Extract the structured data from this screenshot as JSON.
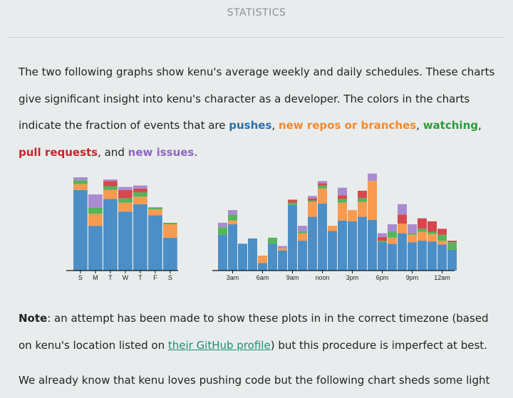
{
  "section_title": "STATISTICS",
  "intro": {
    "text_1": "The two following graphs show kenu's average weekly and daily schedules. These charts give significant insight into kenu's character as a developer. The colors in the charts indicate the fraction of events that are ",
    "pushes": "pushes",
    "sep_1": ", ",
    "repos": "new repos or branches",
    "sep_2": ", ",
    "watching": "watching",
    "sep_3": ", ",
    "pulls": "pull requests",
    "sep_4": ", and ",
    "issues": "new issues",
    "end": "."
  },
  "note": {
    "label": "Note",
    "text_1": ": an attempt has been made to show these plots in in the correct timezone (based on kenu's location listed on ",
    "link": "their GitHub profile",
    "text_2": ") but this procedure is imperfect at best."
  },
  "closing": {
    "text": "We already know that kenu loves pushing code but the following chart sheds some light"
  },
  "colors": {
    "push": "#4b8fc6",
    "create": "#fa9a4f",
    "watch": "#54b55a",
    "pull": "#d8474e",
    "issue": "#a98bcf",
    "axis": "#111111"
  },
  "chart_data": [
    {
      "type": "bar",
      "stacked": true,
      "categories": [
        "S",
        "M",
        "T",
        "W",
        "T",
        "F",
        "S"
      ],
      "ylim": [
        0,
        125
      ],
      "series": [
        {
          "key": "push",
          "values": [
            108,
            60,
            96,
            79,
            89,
            74,
            44
          ]
        },
        {
          "key": "create",
          "values": [
            8,
            16,
            12,
            12,
            10,
            8,
            18
          ]
        },
        {
          "key": "watch",
          "values": [
            5,
            8,
            5,
            6,
            6,
            2,
            2
          ]
        },
        {
          "key": "pull",
          "values": [
            0,
            0,
            7,
            11,
            5,
            0,
            0
          ]
        },
        {
          "key": "issue",
          "values": [
            4,
            18,
            2,
            4,
            4,
            1,
            0
          ]
        }
      ]
    },
    {
      "type": "bar",
      "stacked": true,
      "categories": [
        "0",
        "1",
        "2",
        "3",
        "4",
        "5",
        "6",
        "7",
        "8",
        "9",
        "10",
        "11",
        "12",
        "13",
        "14",
        "15",
        "16",
        "17",
        "18",
        "19",
        "20",
        "21",
        "22",
        "23"
      ],
      "tick_labels": [
        "",
        "3am",
        "",
        "",
        "6am",
        "",
        "",
        "9am",
        "",
        "",
        "noon",
        "",
        "",
        "3pm",
        "",
        "",
        "6pm",
        "",
        "",
        "9pm",
        "",
        "",
        "12am",
        ""
      ],
      "ylim": [
        0,
        125
      ],
      "series": [
        {
          "key": "push",
          "values": [
            48,
            62,
            36,
            43,
            10,
            36,
            27,
            88,
            40,
            72,
            90,
            53,
            67,
            66,
            72,
            68,
            38,
            36,
            50,
            38,
            40,
            39,
            35,
            28
          ]
        },
        {
          "key": "create",
          "values": [
            0,
            5,
            0,
            0,
            10,
            0,
            3,
            0,
            10,
            20,
            20,
            7,
            24,
            15,
            20,
            52,
            0,
            8,
            13,
            10,
            12,
            10,
            5,
            0
          ]
        },
        {
          "key": "watch",
          "values": [
            10,
            8,
            0,
            0,
            0,
            8,
            0,
            3,
            2,
            2,
            4,
            0,
            5,
            0,
            5,
            0,
            2,
            8,
            0,
            2,
            4,
            3,
            8,
            10
          ]
        },
        {
          "key": "pull",
          "values": [
            0,
            0,
            0,
            0,
            0,
            0,
            0,
            4,
            0,
            3,
            3,
            0,
            5,
            0,
            10,
            0,
            5,
            0,
            12,
            0,
            14,
            14,
            8,
            2
          ]
        },
        {
          "key": "issue",
          "values": [
            6,
            6,
            0,
            0,
            0,
            0,
            3,
            0,
            8,
            3,
            3,
            0,
            10,
            0,
            0,
            10,
            5,
            10,
            14,
            12,
            0,
            0,
            0,
            0
          ]
        }
      ]
    }
  ]
}
